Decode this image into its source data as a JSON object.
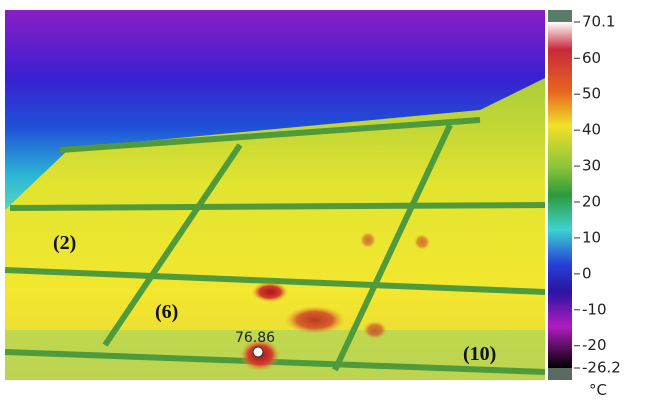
{
  "image": {
    "labels": [
      "(2)",
      "(6)",
      "(10)"
    ],
    "hotspot_reading": "76.86"
  },
  "colorbar": {
    "range": [
      -26.2,
      70.1
    ],
    "ticks": [
      70.1,
      60,
      50,
      40,
      30,
      20,
      10,
      0,
      -10,
      -20,
      -26.2
    ],
    "unit": "°C"
  }
}
